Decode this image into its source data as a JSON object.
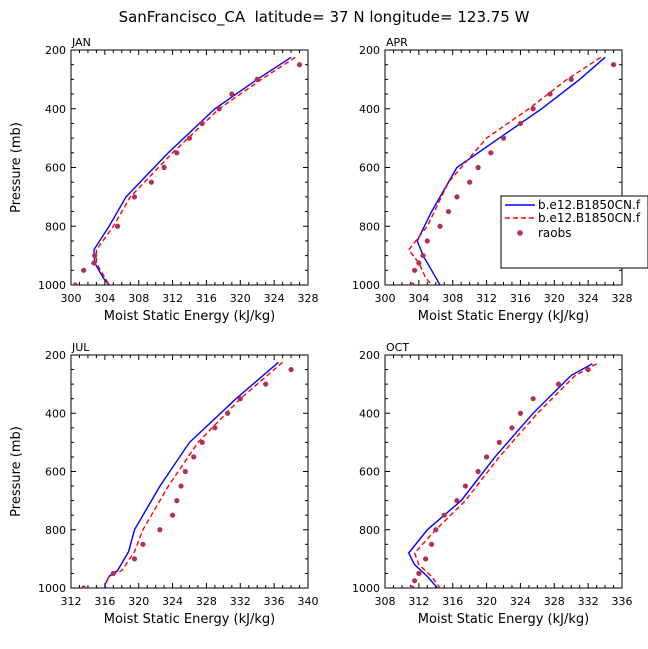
{
  "title": "SanFrancisco_CA  latitude= 37 N longitude= 123.75 W",
  "legend": {
    "entries": [
      {
        "label": "b.e12.B1850CN.f",
        "color": "#0000ff",
        "style": "solid"
      },
      {
        "label": "b.e12.B1850CN.f",
        "color": "#ff0000",
        "style": "dashed"
      },
      {
        "label": "raobs",
        "color": "#b0305a",
        "style": "marker"
      }
    ]
  },
  "chart_data": [
    {
      "type": "line",
      "panel_label": "JAN",
      "xlabel": "Moist Static Energy (kJ/kg)",
      "ylabel": "Pressure (mb)",
      "xlim": [
        300,
        328
      ],
      "ylim": [
        1000,
        200
      ],
      "xticks": [
        300,
        304,
        308,
        312,
        316,
        320,
        324,
        328
      ],
      "yticks": [
        200,
        400,
        600,
        800,
        1000
      ],
      "series": [
        {
          "x": [
            326.0,
            322.0,
            317.0,
            311.5,
            306.5,
            304.5,
            302.7,
            302.8,
            303.8,
            304.5
          ],
          "y": [
            225,
            300,
            400,
            550,
            700,
            800,
            880,
            925,
            975,
            1000
          ],
          "color": "#0000ff",
          "dash": ""
        },
        {
          "x": [
            326.5,
            322.5,
            317.5,
            312.0,
            307.0,
            305.0,
            303.0,
            303.0,
            304.0,
            304.5
          ],
          "y": [
            225,
            300,
            400,
            550,
            700,
            800,
            880,
            925,
            975,
            1000
          ],
          "color": "#ff0000",
          "dash": "5,3"
        },
        {
          "x": [
            327.0,
            322.0,
            319.0,
            317.5,
            315.5,
            314.0,
            312.5,
            311.0,
            309.5,
            307.5,
            305.5,
            302.8,
            302.7,
            301.5,
            300.5
          ],
          "y": [
            250,
            300,
            350,
            400,
            450,
            500,
            550,
            600,
            650,
            700,
            800,
            900,
            925,
            950,
            1000
          ],
          "color": "#b0305a",
          "marker": true
        }
      ]
    },
    {
      "type": "line",
      "panel_label": "APR",
      "xlabel": "Moist Static Energy (kJ/kg)",
      "ylabel": "",
      "xlim": [
        300,
        328
      ],
      "ylim": [
        1000,
        200
      ],
      "xticks": [
        300,
        304,
        308,
        312,
        316,
        320,
        324,
        328
      ],
      "yticks": [
        200,
        400,
        600,
        800,
        1000
      ],
      "series": [
        {
          "x": [
            326.0,
            323.0,
            318.5,
            313.5,
            308.5,
            305.5,
            303.8,
            304.5,
            305.5,
            306.5
          ],
          "y": [
            225,
            300,
            400,
            500,
            600,
            750,
            850,
            900,
            950,
            1000
          ],
          "color": "#0000ff",
          "dash": ""
        },
        {
          "x": [
            325.5,
            321.5,
            317.0,
            312.0,
            307.5,
            305.0,
            302.8,
            304.0,
            304.8,
            305.5
          ],
          "y": [
            225,
            300,
            400,
            500,
            650,
            800,
            880,
            925,
            975,
            1000
          ],
          "color": "#ff0000",
          "dash": "5,3"
        },
        {
          "x": [
            327.0,
            322.0,
            319.5,
            317.5,
            316.0,
            314.0,
            312.5,
            311.0,
            310.0,
            308.5,
            307.5,
            306.5,
            305.0,
            304.5,
            304.0,
            303.5,
            303.2
          ],
          "y": [
            250,
            300,
            350,
            400,
            450,
            500,
            550,
            600,
            650,
            700,
            750,
            800,
            850,
            900,
            925,
            950,
            1000
          ],
          "color": "#b0305a",
          "marker": true
        }
      ]
    },
    {
      "type": "line",
      "panel_label": "JUL",
      "xlabel": "Moist Static Energy (kJ/kg)",
      "ylabel": "Pressure (mb)",
      "xlim": [
        312,
        340
      ],
      "ylim": [
        1000,
        200
      ],
      "xticks": [
        312,
        316,
        320,
        324,
        328,
        332,
        336,
        340
      ],
      "yticks": [
        200,
        400,
        600,
        800,
        1000
      ],
      "series": [
        {
          "x": [
            336.5,
            331.5,
            326.0,
            322.5,
            319.5,
            318.8,
            317.5,
            316.5,
            316.0,
            316.2
          ],
          "y": [
            225,
            350,
            500,
            650,
            800,
            875,
            940,
            960,
            990,
            1010
          ],
          "color": "#0000ff",
          "dash": ""
        },
        {
          "x": [
            337.0,
            332.0,
            327.0,
            323.5,
            320.5,
            319.5,
            318.0,
            316.5,
            316.0
          ],
          "y": [
            225,
            350,
            500,
            650,
            800,
            875,
            940,
            960,
            990
          ],
          "color": "#ff0000",
          "dash": "5,3"
        },
        {
          "x": [
            338.0,
            335.0,
            332.0,
            330.5,
            329.0,
            327.5,
            326.5,
            325.5,
            325.0,
            324.5,
            324.0,
            322.5,
            320.5,
            319.5,
            317.0,
            313.5
          ],
          "y": [
            250,
            300,
            350,
            400,
            450,
            500,
            550,
            600,
            650,
            700,
            750,
            800,
            850,
            900,
            950,
            1000
          ],
          "color": "#b0305a",
          "marker": true
        }
      ]
    },
    {
      "type": "line",
      "panel_label": "OCT",
      "xlabel": "Moist Static Energy (kJ/kg)",
      "ylabel": "",
      "xlim": [
        308,
        336
      ],
      "ylim": [
        1000,
        200
      ],
      "xticks": [
        308,
        312,
        316,
        320,
        324,
        328,
        332,
        336
      ],
      "yticks": [
        200,
        400,
        600,
        800,
        1000
      ],
      "series": [
        {
          "x": [
            332.5,
            330.0,
            325.5,
            321.0,
            317.0,
            313.0,
            310.8,
            311.5,
            313.0,
            314.5
          ],
          "y": [
            230,
            270,
            400,
            550,
            700,
            800,
            880,
            920,
            960,
            1010
          ],
          "color": "#0000ff",
          "dash": ""
        },
        {
          "x": [
            333.0,
            330.5,
            326.0,
            321.5,
            317.5,
            314.0,
            311.5,
            312.0,
            313.5,
            314.5
          ],
          "y": [
            230,
            270,
            400,
            550,
            700,
            800,
            880,
            920,
            960,
            1000
          ],
          "color": "#ff0000",
          "dash": "5,3"
        },
        {
          "x": [
            332.0,
            328.5,
            325.5,
            324.0,
            323.0,
            321.5,
            320.0,
            319.0,
            317.5,
            316.5,
            315.0,
            314.0,
            313.5,
            312.8,
            312.0,
            311.5,
            311.2
          ],
          "y": [
            250,
            300,
            350,
            400,
            450,
            500,
            550,
            600,
            650,
            700,
            750,
            800,
            850,
            900,
            950,
            975,
            1000
          ],
          "color": "#b0305a",
          "marker": true
        }
      ]
    }
  ]
}
